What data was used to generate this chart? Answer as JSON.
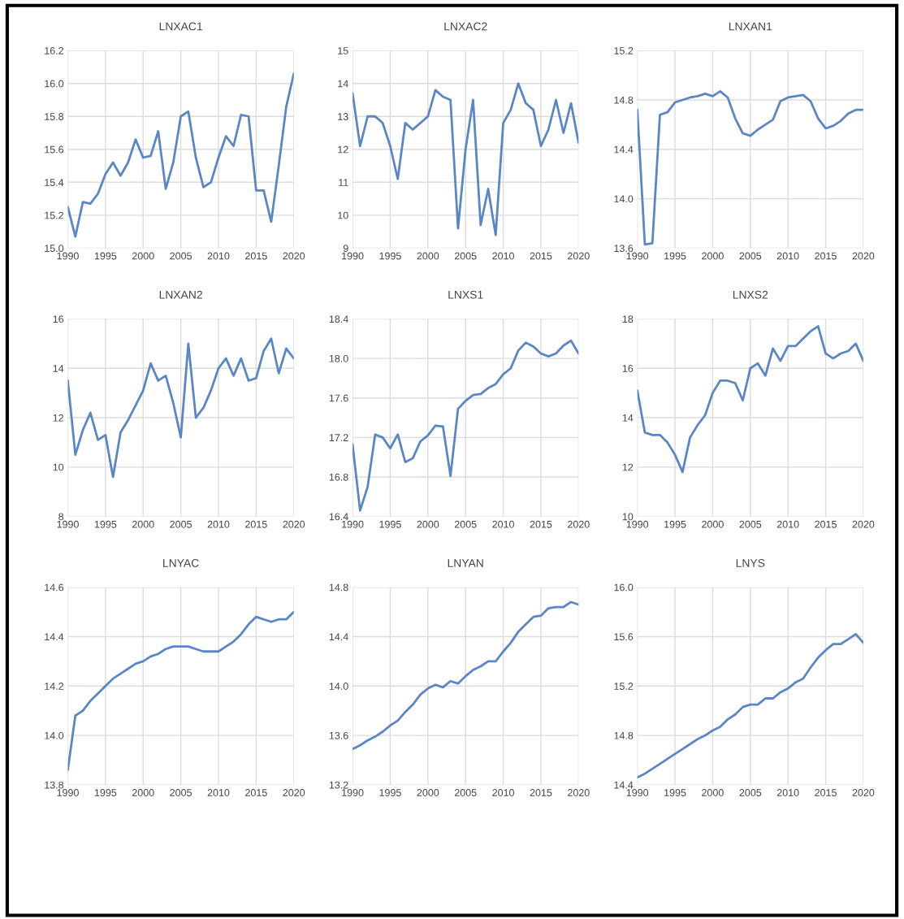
{
  "chart_data": [
    {
      "type": "line",
      "title": "LNXAC1",
      "x": [
        1990,
        1991,
        1992,
        1993,
        1994,
        1995,
        1996,
        1997,
        1998,
        1999,
        2000,
        2001,
        2002,
        2003,
        2004,
        2005,
        2006,
        2007,
        2008,
        2009,
        2010,
        2011,
        2012,
        2013,
        2014,
        2015,
        2016,
        2017,
        2018,
        2019,
        2020
      ],
      "series": [
        {
          "color": "#5b86c5",
          "values": [
            15.25,
            15.07,
            15.28,
            15.27,
            15.33,
            15.45,
            15.52,
            15.44,
            15.52,
            15.66,
            15.55,
            15.56,
            15.71,
            15.36,
            15.52,
            15.8,
            15.83,
            15.55,
            15.37,
            15.4,
            15.55,
            15.68,
            15.62,
            15.81,
            15.8,
            15.35,
            15.35,
            15.16,
            15.5,
            15.86,
            16.06
          ]
        }
      ],
      "xlim": [
        1990,
        2020
      ],
      "xticks": [
        1990,
        1995,
        2000,
        2005,
        2010,
        2015,
        2020
      ],
      "ylim": [
        15.0,
        16.2
      ],
      "yticks": [
        {
          "value": 15.0,
          "label": "15.0"
        },
        {
          "value": 15.2,
          "label": "15.2"
        },
        {
          "value": 15.4,
          "label": "15.4"
        },
        {
          "value": 15.6,
          "label": "15.6"
        },
        {
          "value": 15.8,
          "label": "15.8"
        },
        {
          "value": 16.0,
          "label": "16.0"
        },
        {
          "value": 16.2,
          "label": "16.2"
        }
      ],
      "grid": true
    },
    {
      "type": "line",
      "title": "LNXAC2",
      "x": [
        1990,
        1991,
        1992,
        1993,
        1994,
        1995,
        1996,
        1997,
        1998,
        1999,
        2000,
        2001,
        2002,
        2003,
        2004,
        2005,
        2006,
        2007,
        2008,
        2009,
        2010,
        2011,
        2012,
        2013,
        2014,
        2015,
        2016,
        2017,
        2018,
        2019,
        2020
      ],
      "series": [
        {
          "color": "#5b86c5",
          "values": [
            13.7,
            12.1,
            13.0,
            13.0,
            12.8,
            12.1,
            11.1,
            12.8,
            12.6,
            12.8,
            13.0,
            13.8,
            13.6,
            13.5,
            9.6,
            12.0,
            13.5,
            9.7,
            10.8,
            9.4,
            12.8,
            13.2,
            14.0,
            13.4,
            13.2,
            12.1,
            12.6,
            13.5,
            12.5,
            13.4,
            12.2
          ]
        }
      ],
      "xlim": [
        1990,
        2020
      ],
      "xticks": [
        1990,
        1995,
        2000,
        2005,
        2010,
        2015,
        2020
      ],
      "ylim": [
        9,
        15
      ],
      "yticks": [
        9,
        10,
        11,
        12,
        13,
        14,
        15
      ],
      "grid": true
    },
    {
      "type": "line",
      "title": "LNXAN1",
      "x": [
        1990,
        1991,
        1992,
        1993,
        1994,
        1995,
        1996,
        1997,
        1998,
        1999,
        2000,
        2001,
        2002,
        2003,
        2004,
        2005,
        2006,
        2007,
        2008,
        2009,
        2010,
        2011,
        2012,
        2013,
        2014,
        2015,
        2016,
        2017,
        2018,
        2019,
        2020
      ],
      "series": [
        {
          "color": "#5b86c5",
          "values": [
            14.72,
            13.63,
            13.64,
            14.68,
            14.7,
            14.78,
            14.8,
            14.82,
            14.83,
            14.85,
            14.83,
            14.87,
            14.82,
            14.65,
            14.53,
            14.51,
            14.56,
            14.6,
            14.64,
            14.79,
            14.82,
            14.83,
            14.84,
            14.79,
            14.65,
            14.57,
            14.59,
            14.63,
            14.69,
            14.72,
            14.72
          ]
        }
      ],
      "xlim": [
        1990,
        2020
      ],
      "xticks": [
        1990,
        1995,
        2000,
        2005,
        2010,
        2015,
        2020
      ],
      "ylim": [
        13.6,
        15.2
      ],
      "yticks": [
        13.6,
        {
          "value": 14.0,
          "label": "14.0"
        },
        14.4,
        14.8,
        15.2
      ],
      "grid": true
    },
    {
      "type": "line",
      "title": "LNXAN2",
      "x": [
        1990,
        1991,
        1992,
        1993,
        1994,
        1995,
        1996,
        1997,
        1998,
        1999,
        2000,
        2001,
        2002,
        2003,
        2004,
        2005,
        2006,
        2007,
        2008,
        2009,
        2010,
        2011,
        2012,
        2013,
        2014,
        2015,
        2016,
        2017,
        2018,
        2019,
        2020
      ],
      "series": [
        {
          "color": "#5b86c5",
          "values": [
            13.5,
            10.5,
            11.5,
            12.2,
            11.1,
            11.3,
            9.6,
            11.4,
            11.9,
            12.5,
            13.1,
            14.2,
            13.5,
            13.7,
            12.6,
            11.2,
            15.0,
            12.0,
            12.4,
            13.1,
            14.0,
            14.4,
            13.7,
            14.4,
            13.5,
            13.6,
            14.7,
            15.2,
            13.8,
            14.8,
            14.4
          ]
        }
      ],
      "xlim": [
        1990,
        2020
      ],
      "xticks": [
        1990,
        1995,
        2000,
        2005,
        2010,
        2015,
        2020
      ],
      "ylim": [
        8,
        16
      ],
      "yticks": [
        8,
        10,
        12,
        14,
        16
      ],
      "grid": true
    },
    {
      "type": "line",
      "title": "LNXS1",
      "x": [
        1990,
        1991,
        1992,
        1993,
        1994,
        1995,
        1996,
        1997,
        1998,
        1999,
        2000,
        2001,
        2002,
        2003,
        2004,
        2005,
        2006,
        2007,
        2008,
        2009,
        2010,
        2011,
        2012,
        2013,
        2014,
        2015,
        2016,
        2017,
        2018,
        2019,
        2020
      ],
      "series": [
        {
          "color": "#5b86c5",
          "values": [
            17.13,
            16.46,
            16.7,
            17.23,
            17.2,
            17.09,
            17.23,
            16.95,
            16.99,
            17.16,
            17.22,
            17.32,
            17.31,
            16.81,
            17.49,
            17.57,
            17.63,
            17.64,
            17.7,
            17.74,
            17.84,
            17.9,
            18.08,
            18.16,
            18.12,
            18.05,
            18.02,
            18.05,
            18.13,
            18.18,
            18.05
          ]
        }
      ],
      "xlim": [
        1990,
        2020
      ],
      "xticks": [
        1990,
        1995,
        2000,
        2005,
        2010,
        2015,
        2020
      ],
      "ylim": [
        16.4,
        18.4
      ],
      "yticks": [
        16.4,
        16.8,
        17.2,
        17.6,
        {
          "value": 18.0,
          "label": "18.0"
        },
        18.4
      ],
      "grid": true
    },
    {
      "type": "line",
      "title": "LNXS2",
      "x": [
        1990,
        1991,
        1992,
        1993,
        1994,
        1995,
        1996,
        1997,
        1998,
        1999,
        2000,
        2001,
        2002,
        2003,
        2004,
        2005,
        2006,
        2007,
        2008,
        2009,
        2010,
        2011,
        2012,
        2013,
        2014,
        2015,
        2016,
        2017,
        2018,
        2019,
        2020
      ],
      "series": [
        {
          "color": "#5b86c5",
          "values": [
            15.1,
            13.4,
            13.3,
            13.3,
            13.0,
            12.5,
            11.8,
            13.2,
            13.7,
            14.1,
            15.0,
            15.5,
            15.5,
            15.4,
            14.7,
            16.0,
            16.2,
            15.7,
            16.8,
            16.3,
            16.9,
            16.9,
            17.2,
            17.5,
            17.7,
            16.6,
            16.4,
            16.6,
            16.7,
            17.0,
            16.3
          ]
        }
      ],
      "xlim": [
        1990,
        2020
      ],
      "xticks": [
        1990,
        1995,
        2000,
        2005,
        2010,
        2015,
        2020
      ],
      "ylim": [
        10,
        18
      ],
      "yticks": [
        10,
        12,
        14,
        16,
        18
      ],
      "grid": true
    },
    {
      "type": "line",
      "title": "LNYAC",
      "x": [
        1990,
        1991,
        1992,
        1993,
        1994,
        1995,
        1996,
        1997,
        1998,
        1999,
        2000,
        2001,
        2002,
        2003,
        2004,
        2005,
        2006,
        2007,
        2008,
        2009,
        2010,
        2011,
        2012,
        2013,
        2014,
        2015,
        2016,
        2017,
        2018,
        2019,
        2020
      ],
      "series": [
        {
          "color": "#5b86c5",
          "values": [
            13.86,
            14.08,
            14.1,
            14.14,
            14.17,
            14.2,
            14.23,
            14.25,
            14.27,
            14.29,
            14.3,
            14.32,
            14.33,
            14.35,
            14.36,
            14.36,
            14.36,
            14.35,
            14.34,
            14.34,
            14.34,
            14.36,
            14.38,
            14.41,
            14.45,
            14.48,
            14.47,
            14.46,
            14.47,
            14.47,
            14.5
          ]
        }
      ],
      "xlim": [
        1990,
        2020
      ],
      "xticks": [
        1990,
        1995,
        2000,
        2005,
        2010,
        2015,
        2020
      ],
      "ylim": [
        13.8,
        14.6
      ],
      "yticks": [
        13.8,
        {
          "value": 14.0,
          "label": "14.0"
        },
        14.2,
        14.4,
        14.6
      ],
      "grid": true
    },
    {
      "type": "line",
      "title": "LNYAN",
      "x": [
        1990,
        1991,
        1992,
        1993,
        1994,
        1995,
        1996,
        1997,
        1998,
        1999,
        2000,
        2001,
        2002,
        2003,
        2004,
        2005,
        2006,
        2007,
        2008,
        2009,
        2010,
        2011,
        2012,
        2013,
        2014,
        2015,
        2016,
        2017,
        2018,
        2019,
        2020
      ],
      "series": [
        {
          "color": "#5b86c5",
          "values": [
            13.49,
            13.52,
            13.56,
            13.59,
            13.63,
            13.68,
            13.72,
            13.79,
            13.85,
            13.93,
            13.98,
            14.01,
            13.99,
            14.04,
            14.02,
            14.08,
            14.13,
            14.16,
            14.2,
            14.2,
            14.28,
            14.35,
            14.44,
            14.5,
            14.56,
            14.57,
            14.63,
            14.64,
            14.64,
            14.68,
            14.66
          ]
        }
      ],
      "xlim": [
        1990,
        2020
      ],
      "xticks": [
        1990,
        1995,
        2000,
        2005,
        2010,
        2015,
        2020
      ],
      "ylim": [
        13.2,
        14.8
      ],
      "yticks": [
        13.2,
        13.6,
        {
          "value": 14.0,
          "label": "14.0"
        },
        14.4,
        14.8
      ],
      "grid": true
    },
    {
      "type": "line",
      "title": "LNYS",
      "x": [
        1990,
        1991,
        1992,
        1993,
        1994,
        1995,
        1996,
        1997,
        1998,
        1999,
        2000,
        2001,
        2002,
        2003,
        2004,
        2005,
        2006,
        2007,
        2008,
        2009,
        2010,
        2011,
        2012,
        2013,
        2014,
        2015,
        2016,
        2017,
        2018,
        2019,
        2020
      ],
      "series": [
        {
          "color": "#5b86c5",
          "values": [
            14.46,
            14.49,
            14.53,
            14.57,
            14.61,
            14.65,
            14.69,
            14.73,
            14.77,
            14.8,
            14.84,
            14.87,
            14.93,
            14.97,
            15.03,
            15.05,
            15.05,
            15.1,
            15.1,
            15.15,
            15.18,
            15.23,
            15.26,
            15.35,
            15.43,
            15.49,
            15.54,
            15.54,
            15.58,
            15.62,
            15.55
          ]
        }
      ],
      "xlim": [
        1990,
        2020
      ],
      "xticks": [
        1990,
        1995,
        2000,
        2005,
        2010,
        2015,
        2020
      ],
      "ylim": [
        14.4,
        16.0
      ],
      "yticks": [
        14.4,
        14.8,
        15.2,
        15.6,
        {
          "value": 16.0,
          "label": "16.0"
        }
      ],
      "grid": true
    }
  ]
}
